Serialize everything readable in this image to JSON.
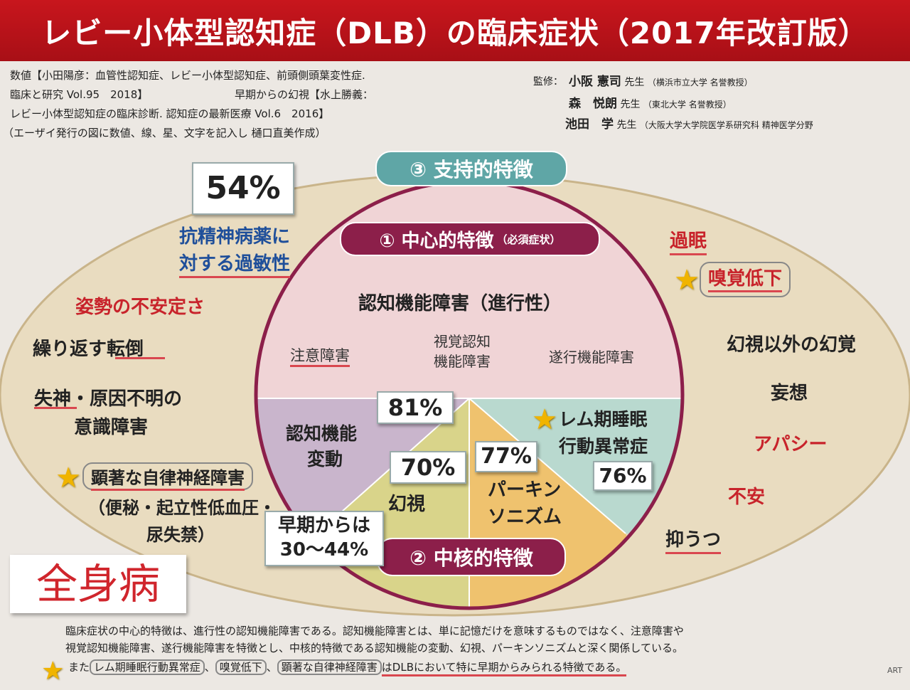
{
  "title": "レビー小体型認知症（DLB）の臨床症状（2017年改訂版）",
  "sources": {
    "line1": "数値【小田陽彦：血管性認知症、レビー小体型認知症、前頭側頭葉変性症.",
    "line2a": "臨床と研究 Vol.95　2018】",
    "line2b": "早期からの幻視【水上勝義：",
    "line3": "レビー小体型認知症の臨床診断. 認知症の最新医療 Vol.6　2016】",
    "line4": "（エーザイ発行の図に数値、線、星、文字を記入し 樋口直美作成）"
  },
  "supervisors": {
    "label": "監修：",
    "people": [
      {
        "name": "小阪 憲司",
        "suffix": "先生",
        "affil": "（横浜市立大学 名誉教授）"
      },
      {
        "name": "森　悦朗",
        "suffix": "先生",
        "affil": "（東北大学 名誉教授）"
      },
      {
        "name": "池田　学",
        "suffix": "先生",
        "affil": "（大阪大学大学院医学系研究科 精神医学分野"
      }
    ]
  },
  "supportive": {
    "header": "③ 支持的特徴",
    "hypersensitivity_pct": "54%",
    "hypersensitivity_l1": "抗精神病薬に",
    "hypersensitivity_l2": "対する過敏性",
    "posture": "姿勢の不安定さ",
    "falls": "繰り返す転倒",
    "syncope_l1": "失神・原因不明の",
    "syncope_l2": "意識障害",
    "autonomic": "顕著な自律神経障害",
    "autonomic_detail_l1": "（便秘・起立性低血圧・",
    "autonomic_detail_l2": "尿失禁）",
    "hypersomnia": "過眠",
    "hyposmia": "嗅覚低下",
    "other_hallucinations": "幻視以外の幻覚",
    "delusion": "妄想",
    "apathy": "アパシー",
    "anxiety": "不安",
    "depression": "抑うつ"
  },
  "central": {
    "header": "① 中心的特徴",
    "header_note": "（必須症状）",
    "cognitive": "認知機能障害（進行性）",
    "attention": "注意障害",
    "visual_l1": "視覚認知",
    "visual_l2": "機能障害",
    "executive": "遂行機能障害"
  },
  "core": {
    "header": "② 中核的特徴",
    "fluct_l1": "認知機能",
    "fluct_l2": "変動",
    "fluct_pct": "81%",
    "vh": "幻視",
    "vh_pct": "70%",
    "early_l1": "早期からは",
    "early_l2": "30〜44%",
    "park_l1": "パーキン",
    "park_l2": "ソニズム",
    "park_pct": "77%",
    "rbd_l1": "レム期睡眠",
    "rbd_l2": "行動異常症",
    "rbd_pct": "76%"
  },
  "whole_body": "全身病",
  "footer": {
    "line1": "臨床症状の中心的特徴は、進行性の認知機能障害である。認知機能障害とは、単に記憶だけを意味するものではなく、注意障害や",
    "line2": "視覚認知機能障害、遂行機能障害を特徴とし、中核的特徴である認知機能の変動、幻視、パーキンソニズムと深く関係している。",
    "line3_pre": "また",
    "line3_rbd": "レム期睡眠行動異常症",
    "line3_sep1": "、",
    "line3_smell": "嗅覚低下",
    "line3_sep2": "、",
    "line3_auto": "顕著な自律神経障害",
    "line3_post": "はDLBにおいて特に早期からみられる特徴である。",
    "corner": "ART"
  },
  "colors": {
    "title_bg": "#c8161d",
    "outer_ellipse": "#e9dcc0",
    "supportive_pill": "#5fa6a6",
    "central_pill": "#8c1f4a",
    "cognitive_fill": "#f0d4d6",
    "fluctuation_fill": "#c9b5cc",
    "hallucination_fill": "#d9d48a",
    "parkinsonism_fill": "#efc26e",
    "rbd_fill": "#b9d9cf",
    "red_text": "#c8232b",
    "blue_text": "#1f4f9a"
  }
}
